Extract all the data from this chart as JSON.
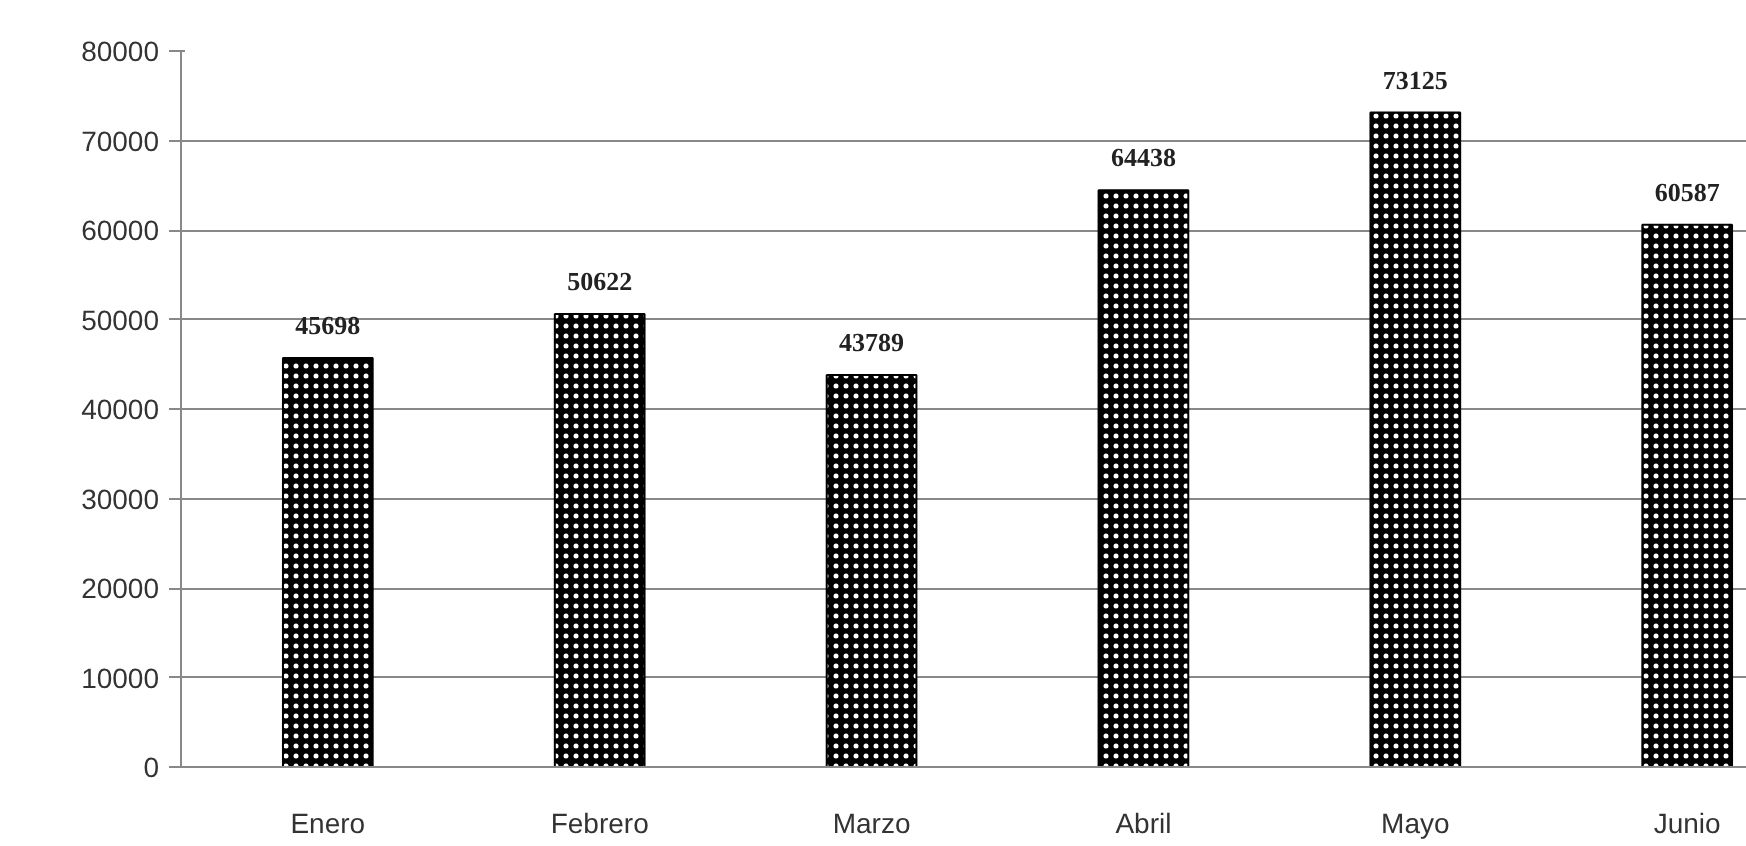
{
  "chart_data": {
    "type": "bar",
    "categories": [
      "Enero",
      "Febrero",
      "Marzo",
      "Abril",
      "Mayo",
      "Junio"
    ],
    "values": [
      45698,
      50622,
      43789,
      64438,
      73125,
      60587
    ],
    "color": "#000000",
    "ylim": [
      0,
      80000
    ],
    "yticks": [
      0,
      10000,
      20000,
      30000,
      40000,
      50000,
      60000,
      70000,
      80000
    ],
    "grid": "y",
    "data_labels": true
  }
}
